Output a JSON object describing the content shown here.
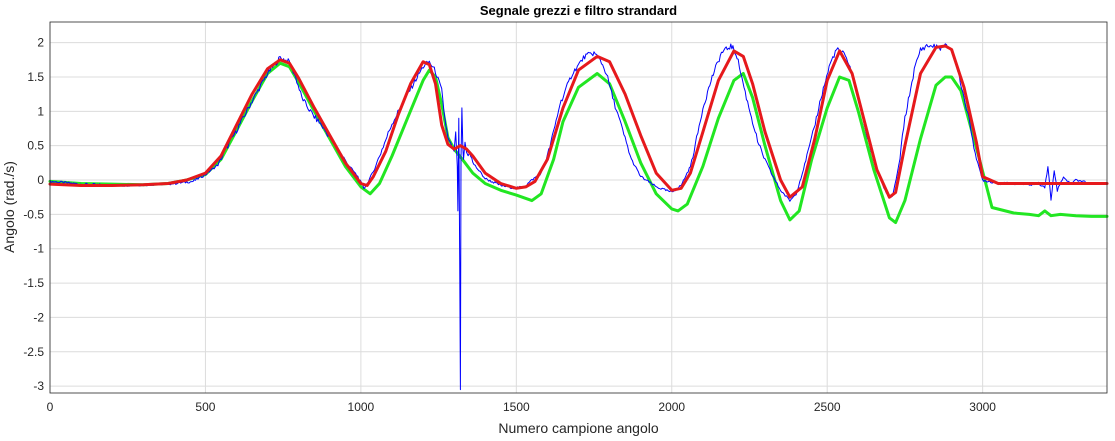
{
  "chart_data": {
    "type": "line",
    "title": "Segnale grezzi e filtro strandard",
    "xlabel": "Numero campione angolo",
    "ylabel": "Angolo (rad./s)",
    "xlim": [
      0,
      3400
    ],
    "ylim": [
      -3.1,
      2.3
    ],
    "xticks": [
      0,
      500,
      1000,
      1500,
      2000,
      2500,
      3000
    ],
    "yticks": [
      2,
      1.5,
      1,
      0.5,
      0,
      -0.5,
      -1,
      -1.5,
      -2,
      -2.5,
      -3
    ],
    "grid": true,
    "series": [
      {
        "color": "#0000ff",
        "x": [
          0,
          100,
          200,
          300,
          400,
          460,
          500,
          540,
          560,
          600,
          650,
          700,
          740,
          770,
          790,
          810,
          830,
          850,
          870,
          900,
          930,
          960,
          990,
          1010,
          1020,
          1040,
          1060,
          1100,
          1150,
          1200,
          1220,
          1240,
          1260,
          1270,
          1280,
          1290,
          1300,
          1305,
          1310,
          1312,
          1315,
          1318,
          1320,
          1322,
          1325,
          1328,
          1330,
          1335,
          1340,
          1345,
          1350,
          1360,
          1400,
          1450,
          1500,
          1530,
          1550,
          1580,
          1600,
          1620,
          1640,
          1680,
          1720,
          1750,
          1770,
          1790,
          1810,
          1830,
          1850,
          1870,
          1900,
          1950,
          2000,
          2030,
          2060,
          2080,
          2100,
          2130,
          2160,
          2190,
          2200,
          2210,
          2240,
          2280,
          2320,
          2350,
          2380,
          2400,
          2420,
          2450,
          2480,
          2510,
          2530,
          2550,
          2570,
          2600,
          2630,
          2660,
          2690,
          2710,
          2730,
          2750,
          2780,
          2800,
          2820,
          2840,
          2860,
          2880,
          2900,
          2920,
          2940,
          2960,
          2980,
          3000,
          3050,
          3100,
          3150,
          3180,
          3200,
          3210,
          3220,
          3230,
          3240,
          3260,
          3280,
          3300,
          3330
        ],
        "y": [
          -0.02,
          -0.06,
          -0.08,
          -0.07,
          -0.05,
          -0.02,
          0.08,
          0.22,
          0.4,
          0.72,
          1.15,
          1.55,
          1.78,
          1.72,
          1.5,
          1.2,
          1.05,
          0.92,
          0.82,
          0.62,
          0.42,
          0.22,
          0.05,
          -0.12,
          -0.05,
          0.12,
          0.35,
          0.82,
          1.25,
          1.65,
          1.72,
          1.58,
          1.3,
          0.9,
          0.6,
          0.5,
          0.42,
          0.7,
          0.2,
          -0.45,
          0.9,
          -1.15,
          -3.05,
          0.3,
          1.05,
          0.45,
          0.3,
          0.55,
          0.4,
          0.35,
          0.42,
          0.25,
          0.02,
          -0.08,
          -0.12,
          -0.08,
          0.0,
          0.1,
          0.35,
          0.7,
          1.1,
          1.55,
          1.8,
          1.85,
          1.75,
          1.55,
          1.2,
          0.9,
          0.6,
          0.3,
          0.05,
          -0.1,
          -0.18,
          -0.08,
          0.2,
          0.6,
          1.05,
          1.5,
          1.85,
          1.95,
          1.9,
          1.8,
          1.2,
          0.5,
          0.1,
          -0.15,
          -0.3,
          -0.2,
          0.1,
          0.6,
          1.2,
          1.7,
          1.9,
          1.85,
          1.7,
          1.2,
          0.6,
          0.15,
          -0.2,
          -0.25,
          0.2,
          0.9,
          1.6,
          1.9,
          1.95,
          1.95,
          1.92,
          1.95,
          1.9,
          1.6,
          1.2,
          0.8,
          0.3,
          0.0,
          -0.05,
          -0.05,
          -0.07,
          -0.05,
          -0.1,
          0.2,
          -0.3,
          0.15,
          -0.15,
          0.05,
          -0.05,
          0.0,
          -0.02
        ]
      },
      {
        "color": "#e6191c",
        "x": [
          0,
          100,
          200,
          300,
          380,
          440,
          500,
          550,
          600,
          650,
          700,
          740,
          770,
          800,
          850,
          900,
          950,
          1000,
          1020,
          1040,
          1080,
          1120,
          1160,
          1200,
          1220,
          1240,
          1260,
          1280,
          1300,
          1320,
          1340,
          1360,
          1400,
          1450,
          1500,
          1530,
          1560,
          1600,
          1650,
          1700,
          1760,
          1800,
          1850,
          1900,
          1950,
          2000,
          2030,
          2060,
          2100,
          2150,
          2200,
          2230,
          2260,
          2300,
          2350,
          2380,
          2420,
          2460,
          2500,
          2540,
          2580,
          2620,
          2660,
          2700,
          2720,
          2750,
          2800,
          2850,
          2880,
          2900,
          2940,
          2980,
          3000,
          3050,
          3100,
          3150,
          3200,
          3250,
          3300,
          3350,
          3400
        ],
        "y": [
          -0.06,
          -0.08,
          -0.08,
          -0.07,
          -0.05,
          0.0,
          0.1,
          0.35,
          0.8,
          1.25,
          1.62,
          1.75,
          1.7,
          1.48,
          1.05,
          0.65,
          0.25,
          -0.05,
          -0.08,
          0.05,
          0.42,
          0.95,
          1.4,
          1.72,
          1.68,
          1.4,
          0.8,
          0.52,
          0.45,
          0.5,
          0.45,
          0.35,
          0.1,
          -0.05,
          -0.12,
          -0.1,
          -0.02,
          0.3,
          1.05,
          1.6,
          1.8,
          1.72,
          1.25,
          0.65,
          0.1,
          -0.15,
          -0.12,
          0.1,
          0.7,
          1.45,
          1.88,
          1.8,
          1.4,
          0.7,
          0.0,
          -0.25,
          -0.1,
          0.6,
          1.45,
          1.88,
          1.55,
          0.85,
          0.15,
          -0.25,
          -0.18,
          0.5,
          1.55,
          1.93,
          1.95,
          1.9,
          1.35,
          0.55,
          0.05,
          -0.05,
          -0.05,
          -0.05,
          -0.05,
          -0.05,
          -0.05,
          -0.05,
          -0.05
        ]
      },
      {
        "color": "#22e622",
        "x": [
          0,
          100,
          200,
          300,
          380,
          440,
          500,
          550,
          600,
          650,
          700,
          740,
          770,
          800,
          850,
          900,
          950,
          1000,
          1030,
          1060,
          1100,
          1150,
          1200,
          1220,
          1240,
          1260,
          1280,
          1300,
          1330,
          1360,
          1400,
          1450,
          1500,
          1550,
          1580,
          1620,
          1650,
          1700,
          1760,
          1800,
          1850,
          1900,
          1950,
          2000,
          2020,
          2050,
          2100,
          2150,
          2200,
          2230,
          2260,
          2300,
          2350,
          2380,
          2410,
          2450,
          2500,
          2540,
          2570,
          2600,
          2650,
          2700,
          2720,
          2750,
          2800,
          2850,
          2880,
          2900,
          2930,
          2960,
          2990,
          3030,
          3100,
          3150,
          3180,
          3200,
          3220,
          3250,
          3300,
          3350,
          3400
        ],
        "y": [
          -0.02,
          -0.05,
          -0.06,
          -0.07,
          -0.05,
          0.0,
          0.08,
          0.3,
          0.72,
          1.15,
          1.55,
          1.7,
          1.65,
          1.42,
          1.0,
          0.6,
          0.2,
          -0.1,
          -0.2,
          -0.05,
          0.35,
          0.9,
          1.45,
          1.6,
          1.5,
          1.1,
          0.62,
          0.45,
          0.28,
          0.1,
          -0.05,
          -0.15,
          -0.22,
          -0.3,
          -0.2,
          0.3,
          0.85,
          1.35,
          1.55,
          1.4,
          0.85,
          0.25,
          -0.2,
          -0.42,
          -0.45,
          -0.35,
          0.2,
          0.9,
          1.45,
          1.55,
          1.2,
          0.5,
          -0.3,
          -0.58,
          -0.45,
          0.3,
          1.05,
          1.5,
          1.45,
          1.0,
          0.15,
          -0.55,
          -0.62,
          -0.3,
          0.6,
          1.38,
          1.5,
          1.5,
          1.3,
          0.8,
          0.3,
          -0.4,
          -0.48,
          -0.5,
          -0.52,
          -0.45,
          -0.52,
          -0.5,
          -0.52,
          -0.53,
          -0.53
        ]
      }
    ]
  }
}
